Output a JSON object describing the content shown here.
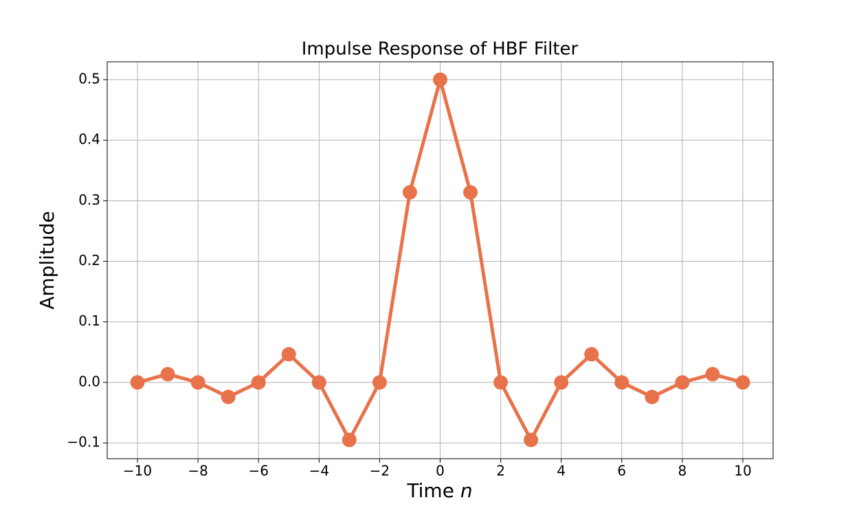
{
  "chart_data": {
    "type": "line",
    "title": "Impulse Response of HBF Filter",
    "xlabel": [
      "Time",
      "n"
    ],
    "ylabel": "Amplitude",
    "x": [
      -10,
      -9,
      -8,
      -7,
      -6,
      -5,
      -4,
      -3,
      -2,
      -1,
      0,
      1,
      2,
      3,
      4,
      5,
      6,
      7,
      8,
      9,
      10
    ],
    "series": [
      {
        "color": "#e8724a",
        "values": [
          0,
          0.0136,
          0,
          -0.024,
          0,
          0.0465,
          0,
          -0.095,
          0,
          0.314,
          0.5,
          0.314,
          0,
          -0.095,
          0,
          0.0465,
          0,
          -0.024,
          0,
          0.0136,
          0
        ]
      }
    ],
    "xlim": [
      -11,
      11
    ],
    "ylim": [
      -0.126,
      0.5295
    ],
    "xticks": [
      {
        "value": -10,
        "label": "−10"
      },
      {
        "value": -8,
        "label": "−8"
      },
      {
        "value": -6,
        "label": "−6"
      },
      {
        "value": -4,
        "label": "−4"
      },
      {
        "value": -2,
        "label": "−2"
      },
      0,
      2,
      4,
      6,
      8,
      10
    ],
    "yticks": [
      {
        "value": -0.1,
        "label": "−0.1"
      },
      {
        "value": 0,
        "label": "0.0"
      },
      0.1,
      0.2,
      0.3,
      0.4,
      0.5
    ],
    "grid": true
  }
}
